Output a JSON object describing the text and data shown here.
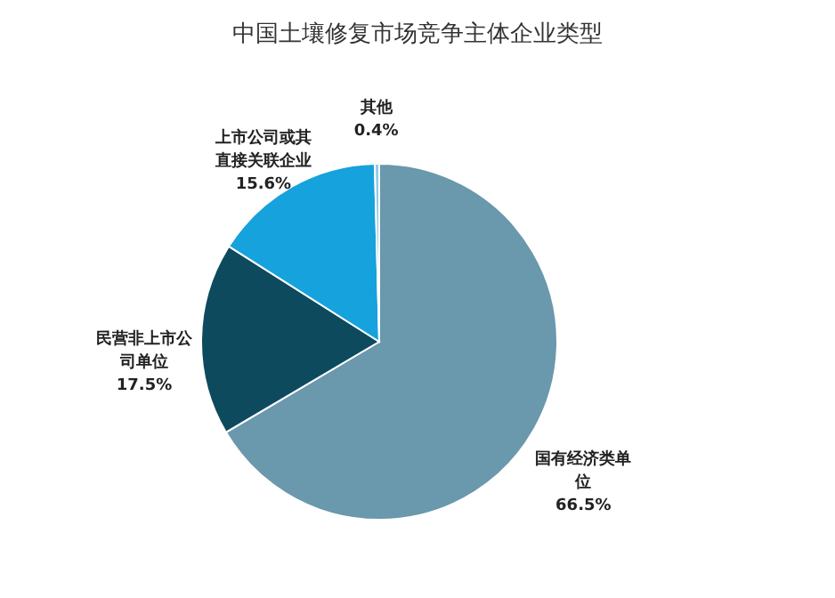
{
  "chart_data": {
    "type": "pie",
    "title": "中国土壤修复市场竞争主体企业类型",
    "categories": [
      "国有经济类单位",
      "民营非上市公司单位",
      "上市公司或其直接关联企业",
      "其他"
    ],
    "values": [
      66.5,
      17.5,
      15.6,
      0.4
    ],
    "colors": [
      "#6a98ac",
      "#0e4a5e",
      "#16a2dc",
      "#8fcbe6"
    ],
    "value_labels": [
      "66.5%",
      "17.5%",
      "15.6%",
      "0.4%"
    ]
  }
}
